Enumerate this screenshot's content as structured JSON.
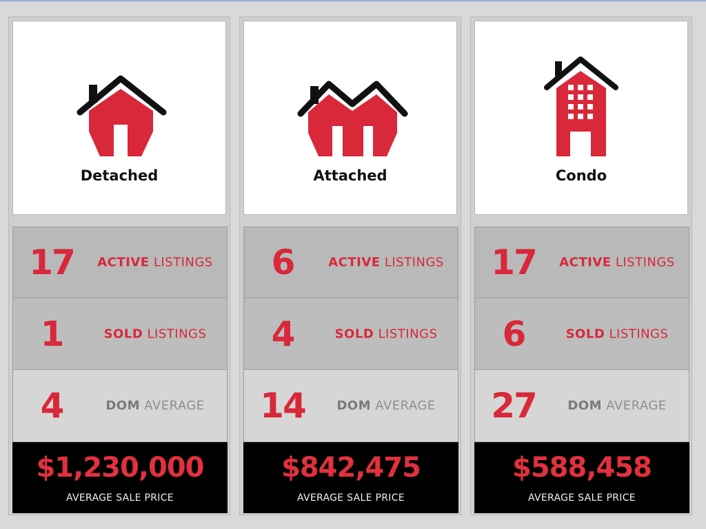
{
  "columns": [
    {
      "name": "Detached",
      "icon": "detached-house-icon",
      "stats": [
        {
          "value": "17",
          "keyword": "ACTIVE",
          "rest": "LISTINGS"
        },
        {
          "value": "1",
          "keyword": "SOLD",
          "rest": "LISTINGS"
        },
        {
          "value": "4",
          "keyword": "DOM",
          "rest": "AVERAGE"
        }
      ],
      "price": "$1,230,000",
      "price_label": "AVERAGE SALE PRICE"
    },
    {
      "name": "Attached",
      "icon": "attached-house-icon",
      "stats": [
        {
          "value": "6",
          "keyword": "ACTIVE",
          "rest": "LISTINGS"
        },
        {
          "value": "4",
          "keyword": "SOLD",
          "rest": "LISTINGS"
        },
        {
          "value": "14",
          "keyword": "DOM",
          "rest": "AVERAGE"
        }
      ],
      "price": "$842,475",
      "price_label": "AVERAGE SALE PRICE"
    },
    {
      "name": "Condo",
      "icon": "condo-building-icon",
      "stats": [
        {
          "value": "17",
          "keyword": "ACTIVE",
          "rest": "LISTINGS"
        },
        {
          "value": "6",
          "keyword": "SOLD",
          "rest": "LISTINGS"
        },
        {
          "value": "27",
          "keyword": "DOM",
          "rest": "AVERAGE"
        }
      ],
      "price": "$588,458",
      "price_label": "AVERAGE SALE PRICE"
    }
  ],
  "colors": {
    "accent": "#d8283a",
    "price_text": "#e2303e",
    "price_bg": "#000000",
    "dom_label": "#7a7a7a"
  }
}
